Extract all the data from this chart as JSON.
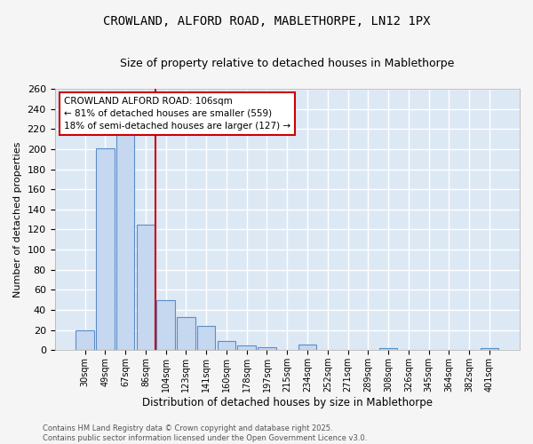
{
  "title": "CROWLAND, ALFORD ROAD, MABLETHORPE, LN12 1PX",
  "subtitle": "Size of property relative to detached houses in Mablethorpe",
  "xlabel": "Distribution of detached houses by size in Mablethorpe",
  "ylabel": "Number of detached properties",
  "footer_line1": "Contains HM Land Registry data © Crown copyright and database right 2025.",
  "footer_line2": "Contains public sector information licensed under the Open Government Licence v3.0.",
  "bar_labels": [
    "30sqm",
    "49sqm",
    "67sqm",
    "86sqm",
    "104sqm",
    "123sqm",
    "141sqm",
    "160sqm",
    "178sqm",
    "197sqm",
    "215sqm",
    "234sqm",
    "252sqm",
    "271sqm",
    "289sqm",
    "308sqm",
    "326sqm",
    "345sqm",
    "364sqm",
    "382sqm",
    "401sqm"
  ],
  "bar_values": [
    20,
    201,
    215,
    125,
    50,
    33,
    24,
    9,
    5,
    3,
    0,
    6,
    0,
    0,
    0,
    2,
    0,
    0,
    0,
    0,
    2
  ],
  "bar_color": "#c5d8f0",
  "bar_edge_color": "#5b8dc8",
  "background_color": "#dde8f5",
  "grid_color": "#ffffff",
  "annotation_text": "CROWLAND ALFORD ROAD: 106sqm\n← 81% of detached houses are smaller (559)\n18% of semi-detached houses are larger (127) →",
  "annotation_box_color": "#ffffff",
  "annotation_box_edge": "#cc0000",
  "redline_color": "#cc0000",
  "ylim": [
    0,
    260
  ],
  "yticks": [
    0,
    20,
    40,
    60,
    80,
    100,
    120,
    140,
    160,
    180,
    200,
    220,
    240,
    260
  ],
  "fig_facecolor": "#f5f5f5",
  "title_fontsize": 10,
  "subtitle_fontsize": 9
}
